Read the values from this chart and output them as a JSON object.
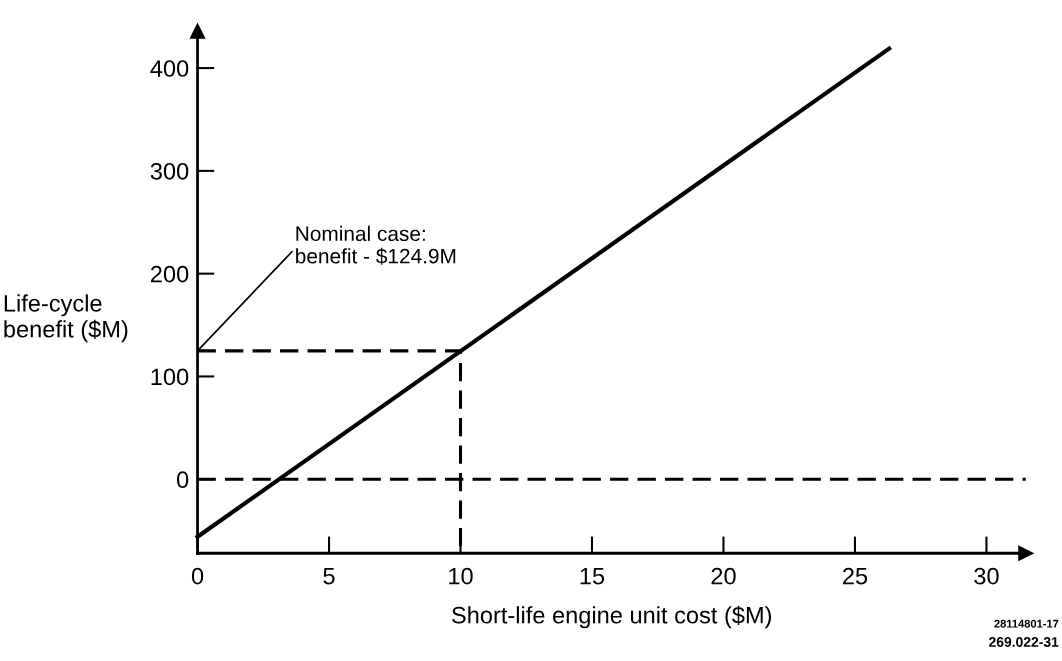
{
  "chart_data": {
    "type": "line",
    "xlabel": "Short-life engine unit cost ($M)",
    "ylabel": "Life-cycle\nbenefit ($M)",
    "series": [
      {
        "color": "#000000",
        "x": [
          0,
          26.3
        ],
        "values": [
          -56,
          419
        ],
        "line_style": "solid"
      },
      {
        "color": "#000000",
        "x": [
          0,
          10,
          10
        ],
        "values": [
          124.9,
          124.9,
          -72
        ],
        "line_style": "dashed"
      }
    ],
    "ref_lines": [
      {
        "axis": "y",
        "value": 0,
        "line_style": "dashed",
        "color": "#000000"
      }
    ],
    "annotations": [
      {
        "text": "Nominal case:\nbenefit - $124.9M",
        "x": 0,
        "y": 124.9
      },
      "28114801-17",
      "269.022-31"
    ],
    "xlim": [
      0,
      31.5
    ],
    "ylim": [
      -72,
      436
    ],
    "xticks": [
      0,
      5,
      10,
      15,
      20,
      25,
      30
    ],
    "yticks": [
      0,
      100,
      200,
      300,
      400
    ],
    "grid": false,
    "legend": false,
    "marker": "none"
  }
}
